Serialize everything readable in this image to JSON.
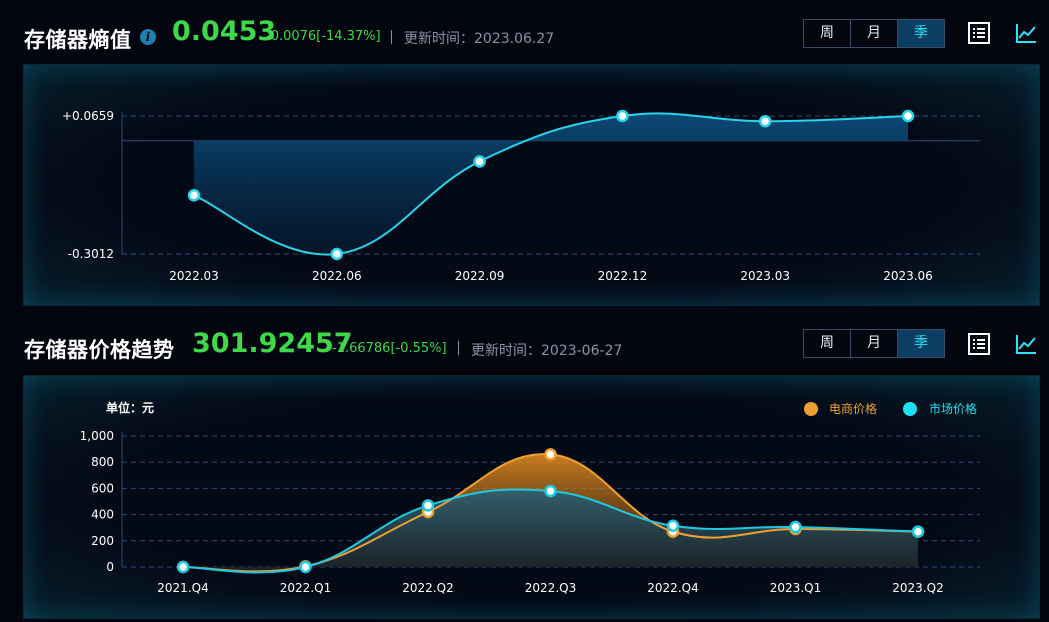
{
  "section1": {
    "title": "存储器熵值",
    "value": "0.0453",
    "change": "-0.0076[-14.37%]",
    "update_label": "更新时间：2023.06.27",
    "buttons": [
      "周",
      "月",
      "季"
    ],
    "active_button": "季"
  },
  "section2": {
    "title": "存储器价格趋势",
    "value": "301.92457",
    "change": "-1.66786[-0.55%]",
    "update_label": "更新时间：2023-06-27",
    "buttons": [
      "周",
      "月",
      "季"
    ],
    "active_button": "季"
  },
  "icons": [
    "info-icon",
    "list-icon",
    "line-chart-icon"
  ],
  "colors": {
    "accent": "#2ee4f8",
    "positive_text": "#3ed84a",
    "ecommerce_series": "#f0a030",
    "market_series": "#1ec8e0"
  },
  "chart_data": [
    {
      "type": "area",
      "categories": [
        "2022.03",
        "2022.06",
        "2022.09",
        "2022.12",
        "2023.03",
        "2023.06"
      ],
      "values": [
        -0.145,
        -0.3012,
        -0.055,
        0.0659,
        0.052,
        0.0659
      ],
      "baseline": 0,
      "ylim": [
        -0.3012,
        0.0659
      ],
      "ytick_labels": [
        "+0.0659",
        "-0.3012"
      ],
      "grid": true,
      "smooth": true
    },
    {
      "type": "area",
      "unit_label": "单位：元",
      "categories": [
        "2021.Q4",
        "2022.Q1",
        "2022.Q2",
        "2022.Q3",
        "2022.Q4",
        "2023.Q1",
        "2023.Q2"
      ],
      "series": [
        {
          "name": "电商价格",
          "values": [
            0,
            5,
            420,
            860,
            270,
            290,
            270
          ]
        },
        {
          "name": "市场价格",
          "values": [
            0,
            0,
            470,
            580,
            315,
            305,
            270
          ]
        }
      ],
      "ylim": [
        0,
        1000
      ],
      "yticks": [
        0,
        200,
        400,
        600,
        800,
        1000
      ],
      "ytick_labels": [
        "0",
        "200",
        "400",
        "600",
        "800",
        "1,000"
      ],
      "legend_position": "top-right",
      "grid": true,
      "smooth": true
    }
  ]
}
